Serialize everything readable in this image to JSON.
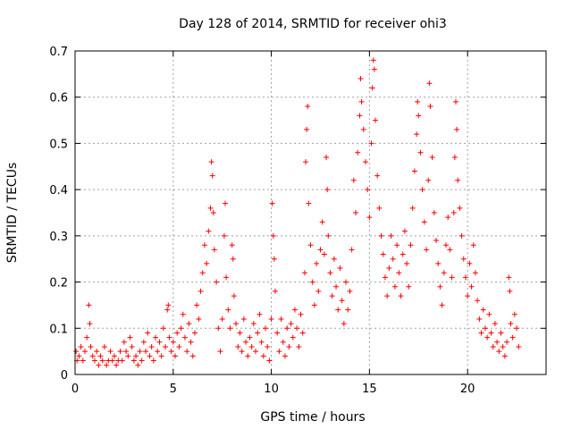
{
  "chart_data": {
    "type": "scatter",
    "title": "Day 128 of 2014, SRMTID for receiver ohi3",
    "xlabel": "GPS time / hours",
    "ylabel": "SRMTID / TECUs",
    "xlim": [
      0,
      24
    ],
    "ylim": [
      0,
      0.7
    ],
    "xticks": [
      0,
      5,
      10,
      15,
      20
    ],
    "yticks": [
      0,
      0.1,
      0.2,
      0.3,
      0.4,
      0.5,
      0.6,
      0.7
    ],
    "xtick_labels": [
      "0",
      "5",
      "10",
      "15",
      "20"
    ],
    "ytick_labels": [
      "0",
      "0.1",
      "0.2",
      "0.3",
      "0.4",
      "0.5",
      "0.6",
      "0.7"
    ],
    "grid": true,
    "marker": "+",
    "marker_color": "#ff0000",
    "series": [
      {
        "name": "SRMTID",
        "points": [
          [
            0.05,
            0.05
          ],
          [
            0.1,
            0.03
          ],
          [
            0.2,
            0.04
          ],
          [
            0.3,
            0.06
          ],
          [
            0.4,
            0.03
          ],
          [
            0.5,
            0.05
          ],
          [
            0.6,
            0.08
          ],
          [
            0.7,
            0.15
          ],
          [
            0.75,
            0.11
          ],
          [
            0.8,
            0.06
          ],
          [
            0.9,
            0.04
          ],
          [
            1.0,
            0.03
          ],
          [
            1.1,
            0.05
          ],
          [
            1.2,
            0.02
          ],
          [
            1.3,
            0.04
          ],
          [
            1.4,
            0.03
          ],
          [
            1.5,
            0.06
          ],
          [
            1.6,
            0.02
          ],
          [
            1.7,
            0.03
          ],
          [
            1.8,
            0.05
          ],
          [
            1.9,
            0.03
          ],
          [
            2.0,
            0.04
          ],
          [
            2.1,
            0.02
          ],
          [
            2.2,
            0.03
          ],
          [
            2.3,
            0.05
          ],
          [
            2.4,
            0.03
          ],
          [
            2.5,
            0.07
          ],
          [
            2.6,
            0.05
          ],
          [
            2.7,
            0.04
          ],
          [
            2.8,
            0.08
          ],
          [
            2.9,
            0.06
          ],
          [
            3.0,
            0.03
          ],
          [
            3.1,
            0.04
          ],
          [
            3.2,
            0.02
          ],
          [
            3.3,
            0.05
          ],
          [
            3.4,
            0.03
          ],
          [
            3.5,
            0.07
          ],
          [
            3.6,
            0.05
          ],
          [
            3.7,
            0.09
          ],
          [
            3.8,
            0.04
          ],
          [
            3.9,
            0.06
          ],
          [
            4.0,
            0.03
          ],
          [
            4.1,
            0.08
          ],
          [
            4.2,
            0.05
          ],
          [
            4.3,
            0.07
          ],
          [
            4.4,
            0.04
          ],
          [
            4.5,
            0.1
          ],
          [
            4.6,
            0.06
          ],
          [
            4.7,
            0.14
          ],
          [
            4.75,
            0.15
          ],
          [
            4.8,
            0.08
          ],
          [
            4.9,
            0.05
          ],
          [
            5.0,
            0.07
          ],
          [
            5.1,
            0.04
          ],
          [
            5.2,
            0.09
          ],
          [
            5.3,
            0.06
          ],
          [
            5.4,
            0.1
          ],
          [
            5.5,
            0.13
          ],
          [
            5.6,
            0.08
          ],
          [
            5.7,
            0.05
          ],
          [
            5.8,
            0.11
          ],
          [
            5.9,
            0.07
          ],
          [
            6.0,
            0.04
          ],
          [
            6.1,
            0.09
          ],
          [
            6.2,
            0.15
          ],
          [
            6.3,
            0.12
          ],
          [
            6.4,
            0.18
          ],
          [
            6.5,
            0.22
          ],
          [
            6.6,
            0.28
          ],
          [
            6.7,
            0.24
          ],
          [
            6.8,
            0.31
          ],
          [
            6.9,
            0.36
          ],
          [
            6.95,
            0.46
          ],
          [
            7.0,
            0.43
          ],
          [
            7.05,
            0.35
          ],
          [
            7.1,
            0.27
          ],
          [
            7.2,
            0.2
          ],
          [
            7.3,
            0.1
          ],
          [
            7.4,
            0.05
          ],
          [
            7.5,
            0.12
          ],
          [
            7.6,
            0.3
          ],
          [
            7.65,
            0.37
          ],
          [
            7.7,
            0.21
          ],
          [
            7.8,
            0.14
          ],
          [
            7.9,
            0.1
          ],
          [
            8.0,
            0.28
          ],
          [
            8.05,
            0.25
          ],
          [
            8.1,
            0.17
          ],
          [
            8.2,
            0.11
          ],
          [
            8.3,
            0.06
          ],
          [
            8.4,
            0.09
          ],
          [
            8.5,
            0.05
          ],
          [
            8.6,
            0.12
          ],
          [
            8.7,
            0.07
          ],
          [
            8.8,
            0.04
          ],
          [
            8.9,
            0.08
          ],
          [
            9.0,
            0.06
          ],
          [
            9.1,
            0.11
          ],
          [
            9.2,
            0.05
          ],
          [
            9.3,
            0.09
          ],
          [
            9.4,
            0.13
          ],
          [
            9.5,
            0.07
          ],
          [
            9.6,
            0.04
          ],
          [
            9.7,
            0.1
          ],
          [
            9.8,
            0.06
          ],
          [
            9.9,
            0.03
          ],
          [
            10.0,
            0.12
          ],
          [
            10.05,
            0.37
          ],
          [
            10.1,
            0.3
          ],
          [
            10.15,
            0.25
          ],
          [
            10.2,
            0.18
          ],
          [
            10.3,
            0.09
          ],
          [
            10.4,
            0.05
          ],
          [
            10.5,
            0.12
          ],
          [
            10.6,
            0.07
          ],
          [
            10.7,
            0.04
          ],
          [
            10.8,
            0.1
          ],
          [
            10.9,
            0.06
          ],
          [
            11.0,
            0.11
          ],
          [
            11.1,
            0.08
          ],
          [
            11.2,
            0.14
          ],
          [
            11.3,
            0.1
          ],
          [
            11.4,
            0.06
          ],
          [
            11.5,
            0.13
          ],
          [
            11.6,
            0.09
          ],
          [
            11.7,
            0.22
          ],
          [
            11.75,
            0.46
          ],
          [
            11.8,
            0.53
          ],
          [
            11.85,
            0.58
          ],
          [
            11.9,
            0.37
          ],
          [
            12.0,
            0.28
          ],
          [
            12.1,
            0.2
          ],
          [
            12.2,
            0.15
          ],
          [
            12.3,
            0.24
          ],
          [
            12.4,
            0.18
          ],
          [
            12.5,
            0.27
          ],
          [
            12.6,
            0.33
          ],
          [
            12.7,
            0.26
          ],
          [
            12.8,
            0.47
          ],
          [
            12.85,
            0.4
          ],
          [
            12.9,
            0.3
          ],
          [
            13.0,
            0.22
          ],
          [
            13.1,
            0.17
          ],
          [
            13.2,
            0.25
          ],
          [
            13.3,
            0.19
          ],
          [
            13.4,
            0.14
          ],
          [
            13.5,
            0.23
          ],
          [
            13.6,
            0.16
          ],
          [
            13.7,
            0.11
          ],
          [
            13.8,
            0.2
          ],
          [
            13.9,
            0.14
          ],
          [
            14.0,
            0.18
          ],
          [
            14.1,
            0.27
          ],
          [
            14.2,
            0.42
          ],
          [
            14.3,
            0.35
          ],
          [
            14.4,
            0.48
          ],
          [
            14.5,
            0.56
          ],
          [
            14.55,
            0.64
          ],
          [
            14.6,
            0.59
          ],
          [
            14.7,
            0.53
          ],
          [
            14.8,
            0.46
          ],
          [
            14.9,
            0.4
          ],
          [
            15.0,
            0.34
          ],
          [
            15.1,
            0.5
          ],
          [
            15.15,
            0.62
          ],
          [
            15.2,
            0.68
          ],
          [
            15.25,
            0.66
          ],
          [
            15.3,
            0.55
          ],
          [
            15.4,
            0.43
          ],
          [
            15.5,
            0.36
          ],
          [
            15.6,
            0.3
          ],
          [
            15.7,
            0.26
          ],
          [
            15.8,
            0.21
          ],
          [
            15.9,
            0.17
          ],
          [
            16.0,
            0.23
          ],
          [
            16.1,
            0.3
          ],
          [
            16.2,
            0.25
          ],
          [
            16.3,
            0.19
          ],
          [
            16.4,
            0.28
          ],
          [
            16.5,
            0.22
          ],
          [
            16.6,
            0.17
          ],
          [
            16.7,
            0.26
          ],
          [
            16.8,
            0.31
          ],
          [
            16.9,
            0.24
          ],
          [
            17.0,
            0.19
          ],
          [
            17.1,
            0.28
          ],
          [
            17.2,
            0.36
          ],
          [
            17.3,
            0.44
          ],
          [
            17.4,
            0.52
          ],
          [
            17.45,
            0.59
          ],
          [
            17.5,
            0.56
          ],
          [
            17.6,
            0.48
          ],
          [
            17.7,
            0.4
          ],
          [
            17.8,
            0.33
          ],
          [
            17.9,
            0.27
          ],
          [
            18.0,
            0.42
          ],
          [
            18.05,
            0.63
          ],
          [
            18.1,
            0.58
          ],
          [
            18.2,
            0.47
          ],
          [
            18.3,
            0.35
          ],
          [
            18.4,
            0.29
          ],
          [
            18.5,
            0.24
          ],
          [
            18.6,
            0.19
          ],
          [
            18.7,
            0.15
          ],
          [
            18.8,
            0.22
          ],
          [
            18.9,
            0.28
          ],
          [
            19.0,
            0.34
          ],
          [
            19.1,
            0.27
          ],
          [
            19.2,
            0.21
          ],
          [
            19.3,
            0.35
          ],
          [
            19.35,
            0.47
          ],
          [
            19.4,
            0.59
          ],
          [
            19.45,
            0.53
          ],
          [
            19.5,
            0.42
          ],
          [
            19.6,
            0.36
          ],
          [
            19.7,
            0.3
          ],
          [
            19.8,
            0.25
          ],
          [
            19.9,
            0.21
          ],
          [
            20.0,
            0.17
          ],
          [
            20.1,
            0.24
          ],
          [
            20.2,
            0.19
          ],
          [
            20.3,
            0.28
          ],
          [
            20.4,
            0.22
          ],
          [
            20.5,
            0.16
          ],
          [
            20.6,
            0.12
          ],
          [
            20.7,
            0.09
          ],
          [
            20.8,
            0.14
          ],
          [
            20.9,
            0.1
          ],
          [
            21.0,
            0.08
          ],
          [
            21.1,
            0.13
          ],
          [
            21.2,
            0.09
          ],
          [
            21.3,
            0.06
          ],
          [
            21.4,
            0.11
          ],
          [
            21.5,
            0.07
          ],
          [
            21.6,
            0.05
          ],
          [
            21.7,
            0.09
          ],
          [
            21.8,
            0.06
          ],
          [
            21.9,
            0.04
          ],
          [
            22.0,
            0.07
          ],
          [
            22.1,
            0.21
          ],
          [
            22.15,
            0.18
          ],
          [
            22.2,
            0.11
          ],
          [
            22.3,
            0.08
          ],
          [
            22.4,
            0.13
          ],
          [
            22.5,
            0.1
          ],
          [
            22.6,
            0.06
          ]
        ]
      }
    ]
  }
}
